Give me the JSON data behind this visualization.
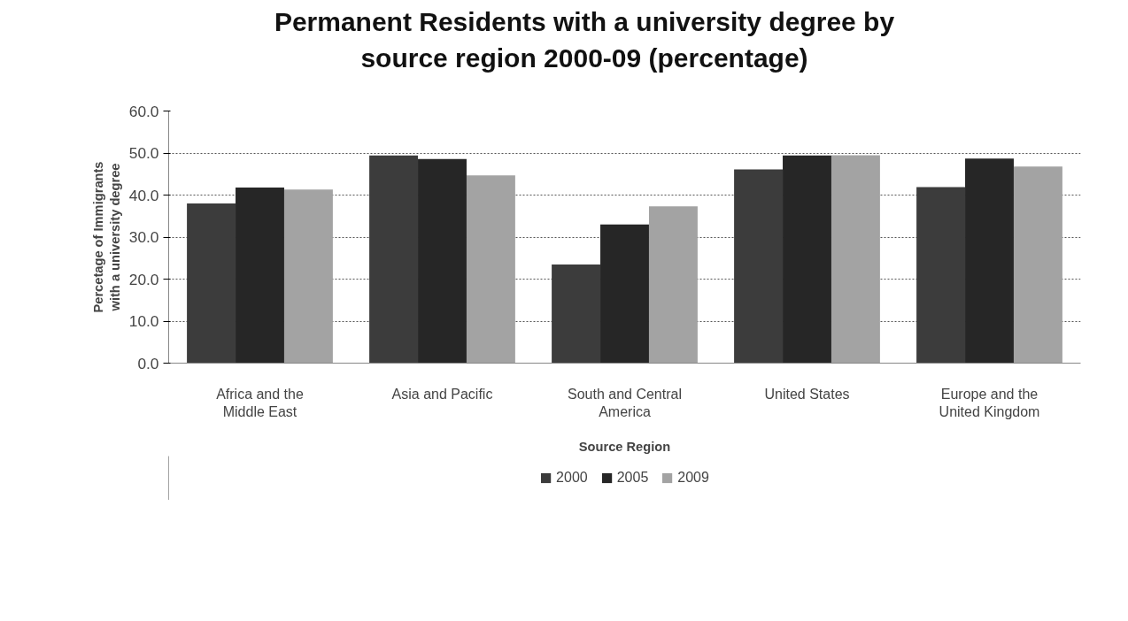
{
  "chart_data": {
    "type": "bar",
    "title": "Permanent Residents with a university degree by source region 2000-09 (percentage)",
    "xlabel": "Source Region",
    "ylabel": "Percetage of Immigrants with a university degree",
    "categories": [
      "Africa and the Middle East",
      "Asia and Pacific",
      "South and Central America",
      "United States",
      "Europe and the United Kingdom"
    ],
    "series": [
      {
        "name": "2000",
        "color": "#3c3c3c",
        "values": [
          38.0,
          49.4,
          23.5,
          46.1,
          41.9
        ]
      },
      {
        "name": "2005",
        "color": "#262626",
        "values": [
          41.8,
          48.6,
          33.0,
          49.4,
          48.7
        ]
      },
      {
        "name": "2009",
        "color": "#a3a3a3",
        "values": [
          41.3,
          44.7,
          37.3,
          49.5,
          46.8
        ]
      }
    ],
    "ylim": [
      0,
      60
    ],
    "yticks": [
      {
        "value": 0,
        "label": "0.0"
      },
      {
        "value": 10,
        "label": "10.0"
      },
      {
        "value": 20,
        "label": "20.0"
      },
      {
        "value": 30,
        "label": "30.0"
      },
      {
        "value": 40,
        "label": "40.0"
      },
      {
        "value": 50,
        "label": "50.0"
      },
      {
        "value": 60,
        "label": "60.0"
      }
    ],
    "grid": "y",
    "legend": "bottom"
  }
}
